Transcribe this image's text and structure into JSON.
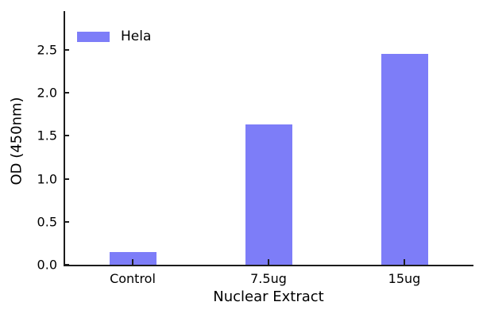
{
  "figure": {
    "background": "#ffffff",
    "axis_color": "#1c1c1c",
    "text_color": "#000000"
  },
  "chart_data": {
    "type": "bar",
    "title": "",
    "categories": [
      "Control",
      "7.5ug",
      "15ug"
    ],
    "series": [
      {
        "name": "Hela",
        "color": "#7d7df8",
        "values": [
          0.15,
          1.63,
          2.45
        ]
      }
    ],
    "xlabel": "Nuclear Extract",
    "ylabel": "OD (450nm)",
    "yticks": [
      0.0,
      0.5,
      1.0,
      1.5,
      2.0,
      2.5
    ],
    "ytick_labels": [
      "0.0",
      "0.5",
      "1.0",
      "1.5",
      "2.0",
      "2.5"
    ],
    "ylim": [
      0,
      2.95
    ],
    "grid": false,
    "spines": [
      "left",
      "bottom"
    ],
    "tick_direction": "in",
    "legend": {
      "position": "upper-left",
      "frame": false,
      "entries": [
        {
          "label": "Hela",
          "color": "#7d7df8"
        }
      ]
    }
  }
}
